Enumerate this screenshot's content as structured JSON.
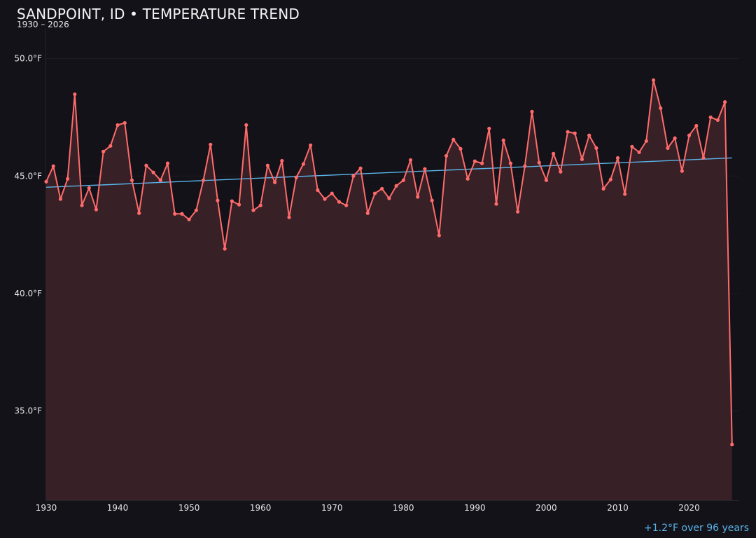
{
  "chart_data": {
    "type": "line",
    "title": "SANDPOINT, ID • TEMPERATURE TREND",
    "subtitle": "1930 – 2026",
    "annotation": "+1.2°F over 96 years",
    "xlabel": "",
    "ylabel": "",
    "xlim": [
      1930,
      2027
    ],
    "ylim": [
      31.2,
      51.3
    ],
    "x_ticks": [
      "1930",
      "1940",
      "1950",
      "1960",
      "1970",
      "1980",
      "1990",
      "2000",
      "2010",
      "2020"
    ],
    "y_ticks": [
      "35.0°F",
      "40.0°F",
      "45.0°F",
      "50.0°F"
    ],
    "y_tick_values": [
      35,
      40,
      45,
      50
    ],
    "grid": "horizontal",
    "colors": {
      "background": "#131218",
      "line": "#ff6b6b",
      "fill": "#372026",
      "trend": "#5ab4ea"
    },
    "series": [
      {
        "x": [
          1930,
          1931,
          1932,
          1933,
          1934,
          1935,
          1936,
          1937,
          1938,
          1939,
          1940,
          1941,
          1942,
          1943,
          1944,
          1945,
          1946,
          1947,
          1948,
          1949,
          1950,
          1951,
          1952,
          1953,
          1954,
          1955,
          1956,
          1957,
          1958,
          1959,
          1960,
          1961,
          1962,
          1963,
          1964,
          1965,
          1966,
          1967,
          1968,
          1969,
          1970,
          1971,
          1972,
          1973,
          1974,
          1975,
          1976,
          1977,
          1978,
          1979,
          1980,
          1981,
          1982,
          1983,
          1984,
          1985,
          1986,
          1987,
          1988,
          1989,
          1990,
          1991,
          1992,
          1993,
          1994,
          1995,
          1996,
          1997,
          1998,
          1999,
          2000,
          2001,
          2002,
          2003,
          2004,
          2005,
          2006,
          2007,
          2008,
          2009,
          2010,
          2011,
          2012,
          2013,
          2014,
          2015,
          2016,
          2017,
          2018,
          2019,
          2020,
          2021,
          2022,
          2023,
          2024,
          2025,
          2026
        ],
        "values": [
          44.76,
          45.42,
          44.02,
          44.88,
          48.48,
          43.75,
          44.49,
          43.57,
          46.04,
          46.28,
          47.17,
          47.26,
          44.82,
          43.42,
          45.45,
          45.15,
          44.82,
          45.54,
          43.39,
          43.39,
          43.15,
          43.54,
          44.82,
          46.34,
          43.96,
          41.9,
          43.93,
          43.78,
          47.17,
          43.54,
          43.75,
          45.45,
          44.73,
          45.65,
          43.24,
          44.94,
          45.51,
          46.31,
          44.4,
          44.02,
          44.26,
          43.9,
          43.75,
          45.0,
          45.33,
          43.42,
          44.26,
          44.46,
          44.05,
          44.58,
          44.82,
          45.68,
          44.11,
          45.3,
          43.96,
          42.47,
          45.86,
          46.55,
          46.16,
          44.88,
          45.63,
          45.54,
          47.02,
          43.81,
          46.52,
          45.54,
          43.48,
          45.42,
          47.74,
          45.57,
          44.82,
          45.95,
          45.18,
          46.88,
          46.82,
          45.71,
          46.73,
          46.19,
          44.46,
          44.85,
          45.77,
          44.23,
          46.25,
          46.01,
          46.49,
          49.08,
          47.89,
          46.19,
          46.61,
          45.21,
          46.73,
          47.14,
          45.77,
          47.5,
          47.38,
          48.15,
          33.57
        ]
      }
    ],
    "trend": {
      "x": [
        1930,
        2026
      ],
      "values": [
        44.52,
        45.77
      ]
    }
  }
}
